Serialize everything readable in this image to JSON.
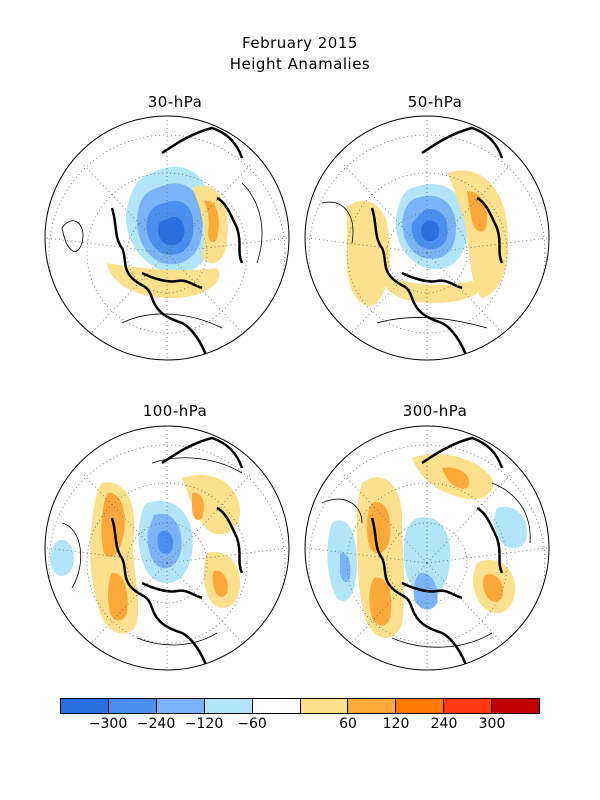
{
  "title": "February 2015",
  "subtitle": "Height Anamalies",
  "panels": [
    {
      "label": "30-hPa"
    },
    {
      "label": "50-hPa"
    },
    {
      "label": "100-hPa"
    },
    {
      "label": "300-hPa"
    }
  ],
  "colorbar": {
    "colors": [
      "#2a6ee0",
      "#4a8ff0",
      "#7ab4f7",
      "#b3e5fa",
      "#ffffff",
      "#fde08c",
      "#fca83a",
      "#ff7a00",
      "#ff3a10",
      "#c00000"
    ],
    "tick_labels": [
      "-300",
      "-240",
      "-120",
      "-60",
      "60",
      "120",
      "240",
      "300"
    ]
  }
}
